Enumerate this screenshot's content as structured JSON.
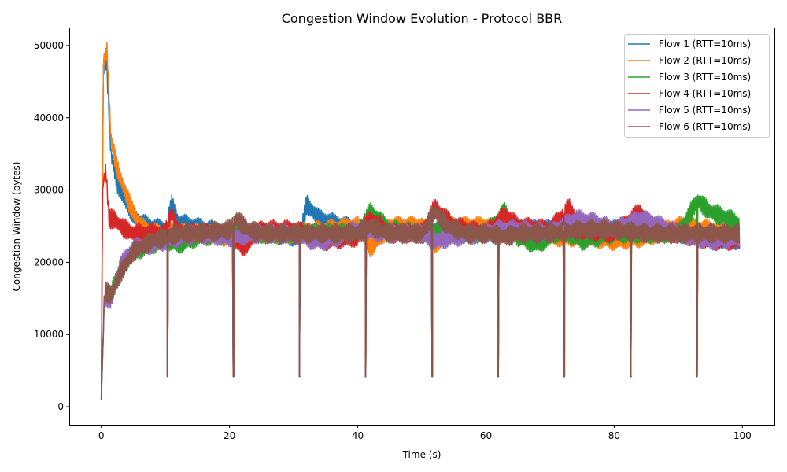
{
  "chart_data": {
    "type": "line",
    "title": "Congestion Window Evolution - Protocol BBR",
    "xlabel": "Time (s)",
    "ylabel": "Congestion Window (bytes)",
    "xlim": [
      -5,
      105
    ],
    "ylim": [
      -2500,
      52500
    ],
    "xticks": [
      0,
      20,
      40,
      60,
      80,
      100
    ],
    "yticks": [
      0,
      10000,
      20000,
      30000,
      40000,
      50000
    ],
    "grid": false,
    "legend_position": "top-right",
    "dip_times": [
      10.3,
      20.6,
      30.9,
      41.2,
      51.6,
      61.9,
      72.2,
      82.6,
      92.9
    ],
    "dip_value": 4200,
    "series": [
      {
        "name": "Flow 1 (RTT=10ms)",
        "color": "#1f77b4",
        "x": [
          0,
          0.3,
          0.8,
          1.5,
          2.5,
          4,
          6,
          8,
          10,
          11,
          12,
          15,
          20,
          25,
          31,
          32,
          34,
          38,
          41,
          45,
          50,
          55,
          62,
          63,
          65,
          70,
          75,
          80,
          85,
          90,
          95,
          100
        ],
        "y": [
          1000,
          47000,
          48000,
          35000,
          31000,
          28000,
          25500,
          24800,
          24500,
          28000,
          25500,
          24800,
          24000,
          24000,
          23500,
          28000,
          26000,
          25000,
          24500,
          24500,
          24500,
          24500,
          24000,
          25000,
          24500,
          24500,
          24500,
          24500,
          24500,
          24000,
          23500,
          23000
        ]
      },
      {
        "name": "Flow 2 (RTT=10ms)",
        "color": "#ff7f0e",
        "x": [
          0,
          0.3,
          0.9,
          1.5,
          2.5,
          4,
          6,
          8,
          10,
          11,
          12,
          15,
          20,
          25,
          30,
          35,
          40,
          42,
          45,
          50,
          52,
          55,
          60,
          65,
          70,
          75,
          80,
          85,
          90,
          95,
          100
        ],
        "y": [
          1000,
          47000,
          49500,
          37000,
          33000,
          29000,
          25000,
          24000,
          24000,
          24500,
          24000,
          24000,
          23500,
          24000,
          24000,
          24500,
          25000,
          22000,
          25000,
          25000,
          22500,
          25000,
          25000,
          24000,
          23500,
          23500,
          23000,
          23500,
          25000,
          24500,
          24000
        ]
      },
      {
        "name": "Flow 3 (RTT=10ms)",
        "color": "#2ca02c",
        "x": [
          0,
          0.5,
          1.5,
          3,
          5,
          8,
          10,
          12,
          15,
          20,
          25,
          30,
          35,
          40,
          42,
          45,
          50,
          55,
          60,
          63,
          65,
          68,
          72,
          75,
          80,
          85,
          90,
          93,
          95,
          98,
          100
        ],
        "y": [
          1000,
          15000,
          15500,
          19000,
          21500,
          22500,
          23000,
          22500,
          23500,
          24000,
          24000,
          24000,
          24000,
          24000,
          27000,
          24500,
          24000,
          24000,
          24000,
          27000,
          23500,
          22500,
          24500,
          23000,
          24000,
          24000,
          24000,
          28500,
          27000,
          26000,
          25000
        ]
      },
      {
        "name": "Flow 4 (RTT=10ms)",
        "color": "#d62728",
        "x": [
          0,
          0.2,
          0.7,
          1.2,
          2,
          3,
          5,
          8,
          10,
          11,
          12,
          15,
          20,
          22,
          25,
          30,
          35,
          40,
          42,
          45,
          50,
          52,
          55,
          60,
          63,
          65,
          70,
          73,
          75,
          80,
          84,
          86,
          90,
          95,
          100
        ],
        "y": [
          1000,
          30000,
          33000,
          26000,
          26000,
          25000,
          24000,
          24000,
          24000,
          27000,
          24000,
          24000,
          24000,
          22000,
          24500,
          24500,
          23000,
          23500,
          26000,
          24000,
          24000,
          27500,
          25000,
          24000,
          26500,
          25000,
          24500,
          27500,
          24500,
          24000,
          27000,
          24500,
          24000,
          23000,
          23000
        ]
      },
      {
        "name": "Flow 5 (RTT=10ms)",
        "color": "#9467bd",
        "x": [
          0,
          0.5,
          1.5,
          3,
          5,
          8,
          10,
          12,
          15,
          20,
          25,
          30,
          33,
          35,
          40,
          45,
          50,
          52,
          55,
          60,
          62,
          65,
          70,
          74,
          77,
          80,
          84,
          86,
          90,
          95,
          100
        ],
        "y": [
          1000,
          15000,
          15000,
          19500,
          22000,
          22500,
          23000,
          23500,
          24000,
          23500,
          24000,
          24000,
          23000,
          23000,
          24500,
          24000,
          24000,
          23000,
          23500,
          24000,
          24500,
          24500,
          24000,
          26000,
          25500,
          24500,
          26000,
          25500,
          24000,
          23000,
          23500
        ]
      },
      {
        "name": "Flow 6 (RTT=10ms)",
        "color": "#8c564b",
        "x": [
          0,
          0.5,
          1.5,
          3,
          5,
          8,
          10,
          12,
          15,
          20,
          21,
          23,
          25,
          30,
          35,
          40,
          42,
          45,
          50,
          52,
          54,
          57,
          60,
          63,
          65,
          70,
          75,
          80,
          85,
          90,
          95,
          100
        ],
        "y": [
          1000,
          16000,
          15500,
          18500,
          21500,
          23000,
          23500,
          24000,
          24000,
          24500,
          26000,
          24500,
          24000,
          24000,
          24000,
          24000,
          25000,
          24000,
          24000,
          27000,
          25000,
          24000,
          24000,
          23500,
          24000,
          24000,
          24500,
          24500,
          24000,
          24000,
          24000,
          24000
        ]
      }
    ]
  }
}
